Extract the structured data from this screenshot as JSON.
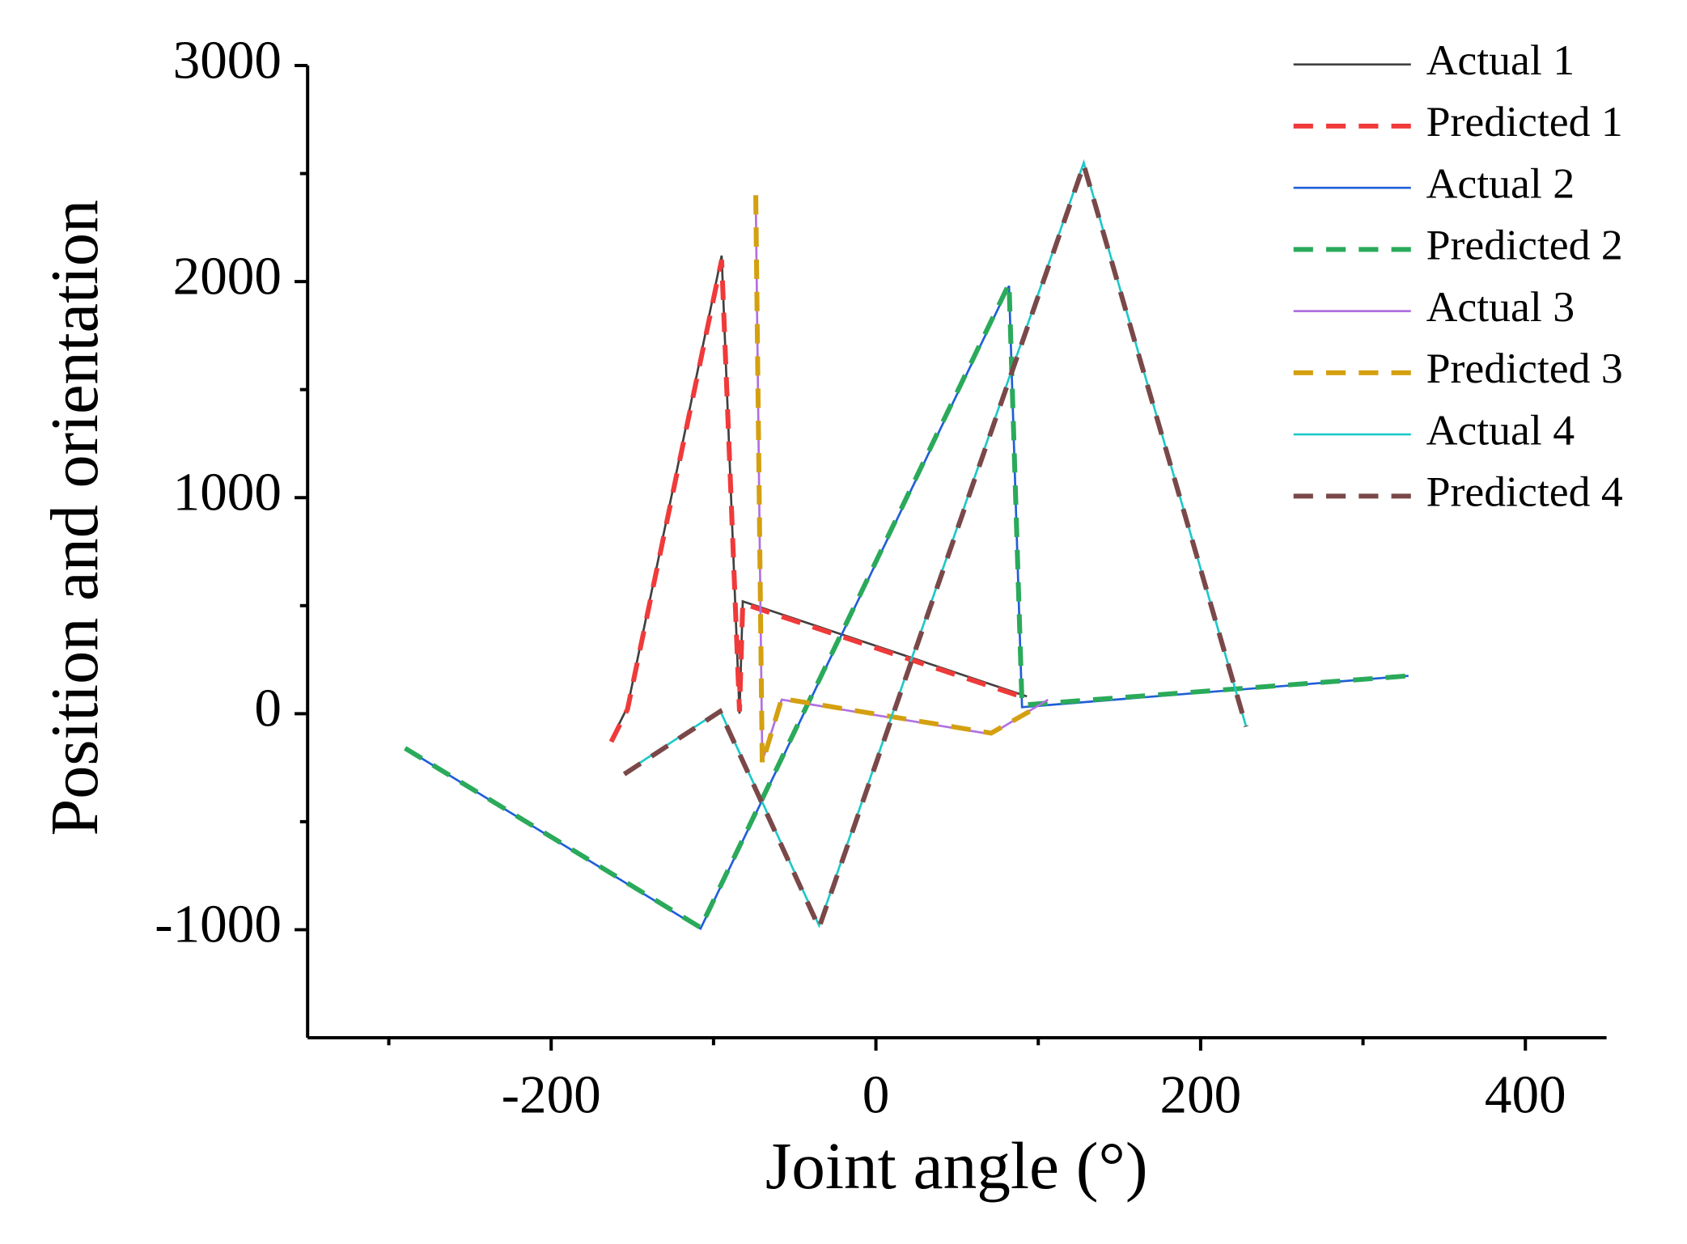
{
  "chart_data": {
    "type": "line",
    "xlabel": "Joint angle (°)",
    "ylabel": "Position and orientation",
    "xlim": [
      -350,
      450
    ],
    "xticks": [
      -200,
      0,
      200,
      400
    ],
    "xminorticks": [
      -300,
      -100,
      100,
      300
    ],
    "ylim": [
      -1500,
      3000
    ],
    "yticks": [
      -1000,
      0,
      1000,
      2000,
      3000
    ],
    "yminorticks": [
      -500,
      500,
      1500,
      2500
    ],
    "legend": "top-right",
    "series": [
      {
        "name": "Actual 1",
        "color": "#404040",
        "style": "solid",
        "x": [
          -163,
          -153,
          -95,
          -84,
          -82,
          93
        ],
        "values": [
          -120,
          30,
          2120,
          0,
          520,
          80
        ]
      },
      {
        "name": "Predicted 1",
        "color": "#f03a3a",
        "style": "dashed",
        "x": [
          -163,
          -153,
          -95,
          -84,
          -82,
          93
        ],
        "values": [
          -130,
          20,
          2100,
          10,
          510,
          70
        ]
      },
      {
        "name": "Actual 2",
        "color": "#1f5fd6",
        "style": "solid",
        "x": [
          -290,
          -108,
          82,
          90,
          328
        ],
        "values": [
          -160,
          -995,
          1980,
          30,
          175
        ]
      },
      {
        "name": "Predicted 2",
        "color": "#2aaa5a",
        "style": "dashed",
        "x": [
          -290,
          -108,
          82,
          90,
          328
        ],
        "values": [
          -160,
          -990,
          1990,
          40,
          175
        ]
      },
      {
        "name": "Actual 3",
        "color": "#b070e0",
        "style": "solid",
        "x": [
          -74,
          -70,
          -58,
          71,
          106
        ],
        "values": [
          2390,
          -220,
          65,
          -95,
          65
        ]
      },
      {
        "name": "Predicted 3",
        "color": "#d4a010",
        "style": "dashed",
        "x": [
          -74,
          -70,
          -58,
          71,
          98
        ],
        "values": [
          2400,
          -230,
          70,
          -90,
          25
        ]
      },
      {
        "name": "Actual 4",
        "color": "#1fc8c8",
        "style": "solid",
        "x": [
          -155,
          -96,
          -35,
          128,
          228
        ],
        "values": [
          -275,
          15,
          -980,
          2550,
          -60
        ]
      },
      {
        "name": "Predicted 4",
        "color": "#7a4848",
        "style": "dashed",
        "x": [
          -155,
          -96,
          -35,
          128,
          228
        ],
        "values": [
          -280,
          10,
          -990,
          2540,
          -60
        ]
      }
    ]
  }
}
